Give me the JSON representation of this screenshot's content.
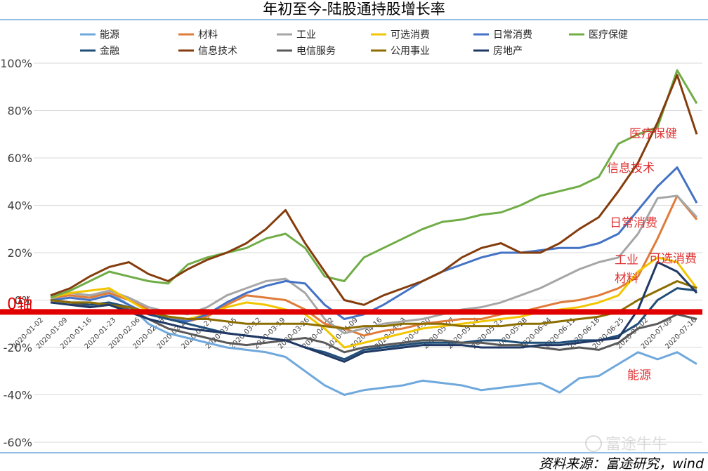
{
  "chart_data": {
    "type": "line",
    "title": "年初至今-陆股通持股增长率",
    "ylim": [
      -60,
      100
    ],
    "y_ticks": [
      "100%",
      "80%",
      "60%",
      "40%",
      "20%",
      "0%",
      "-20%",
      "-40%",
      "-60%"
    ],
    "x_tick_labels": [
      "2020-01-02",
      "2020-01-09",
      "2020-01-16",
      "2020-01-23",
      "2020-02-06",
      "2020-02-13",
      "2020-02-20",
      "2020-02-27",
      "2020-03-05",
      "2020-03-12",
      "2020-03-19",
      "2020-03-26",
      "2020-04-02",
      "2020-04-09",
      "2020-04-16",
      "2020-04-23",
      "2020-04-30",
      "2020-05-07",
      "2020-05-14",
      "2020-05-21",
      "2020-05-28",
      "2020-06-04",
      "2020-06-11",
      "2020-06-18",
      "2020-06-25",
      "2020-07-02",
      "2020-07-09",
      "2020-07-16"
    ],
    "zero_axis_label": "0轴",
    "legend_position": "top",
    "source": "资料来源：富途研究，wind",
    "watermark": "富途牛牛",
    "grid": "horizontal",
    "series": [
      {
        "name": "能源",
        "color": "#6fa8dc",
        "end_label": "能源",
        "values": [
          2,
          3,
          2,
          3,
          -2,
          -10,
          -14,
          -16,
          -18,
          -20,
          -21,
          -22,
          -24,
          -30,
          -36,
          -40,
          -38,
          -37,
          -36,
          -34,
          -35,
          -36,
          -38,
          -37,
          -36,
          -35,
          -39,
          -33,
          -32,
          -27,
          -22,
          -25,
          -22,
          -27
        ]
      },
      {
        "name": "材料",
        "color": "#e07b39",
        "end_label": "材料",
        "values": [
          1,
          2,
          1,
          3,
          0,
          -4,
          -8,
          -9,
          -7,
          -2,
          2,
          1,
          0,
          -4,
          -10,
          -12,
          -15,
          -13,
          -12,
          -10,
          -9,
          -8,
          -8,
          -6,
          -5,
          -3,
          -1,
          0,
          2,
          5,
          10,
          26,
          44,
          34
        ]
      },
      {
        "name": "工业",
        "color": "#a6a6a6",
        "end_label": "工业",
        "values": [
          2,
          3,
          2,
          4,
          1,
          -3,
          -5,
          -6,
          -3,
          2,
          5,
          8,
          9,
          3,
          -8,
          -14,
          -12,
          -10,
          -9,
          -8,
          -6,
          -4,
          -3,
          -1,
          2,
          5,
          9,
          13,
          16,
          18,
          28,
          43,
          44,
          35
        ]
      },
      {
        "name": "可选消费",
        "color": "#f2c500",
        "end_label": "可选消费",
        "values": [
          1,
          3,
          4,
          5,
          0,
          -5,
          -7,
          -8,
          -6,
          -3,
          -1,
          -2,
          -4,
          -6,
          -12,
          -20,
          -18,
          -16,
          -14,
          -12,
          -11,
          -10,
          -9,
          -8,
          -7,
          -5,
          -4,
          -3,
          -1,
          2,
          12,
          18,
          16,
          5
        ]
      },
      {
        "name": "日常消费",
        "color": "#4472c4",
        "end_label": "日常消费",
        "values": [
          0,
          1,
          0,
          2,
          -2,
          -6,
          -8,
          -9,
          -6,
          -1,
          3,
          6,
          8,
          7,
          -2,
          -8,
          -6,
          -2,
          3,
          8,
          12,
          15,
          18,
          20,
          20,
          21,
          22,
          22,
          24,
          28,
          38,
          48,
          56,
          41
        ]
      },
      {
        "name": "医疗保健",
        "color": "#70ad47",
        "end_label": "医疗保健",
        "values": [
          1,
          4,
          8,
          12,
          10,
          8,
          7,
          15,
          18,
          20,
          22,
          26,
          28,
          22,
          10,
          8,
          18,
          22,
          26,
          30,
          33,
          34,
          36,
          37,
          40,
          44,
          46,
          48,
          52,
          66,
          70,
          73,
          97,
          83
        ]
      },
      {
        "name": "金融",
        "color": "#1f4e79",
        "values": [
          0,
          -1,
          -2,
          -1,
          -3,
          -6,
          -8,
          -10,
          -12,
          -14,
          -15,
          -16,
          -17,
          -20,
          -22,
          -25,
          -21,
          -20,
          -19,
          -18,
          -18,
          -18,
          -17,
          -17,
          -18,
          -18,
          -18,
          -17,
          -17,
          -15,
          -10,
          0,
          5,
          4
        ]
      },
      {
        "name": "信息技术",
        "color": "#843c0c",
        "end_label": "信息技术",
        "values": [
          2,
          5,
          10,
          14,
          16,
          11,
          8,
          13,
          17,
          20,
          24,
          30,
          38,
          24,
          12,
          0,
          -2,
          2,
          5,
          8,
          12,
          18,
          22,
          24,
          20,
          20,
          24,
          30,
          35,
          46,
          58,
          75,
          95,
          70
        ]
      },
      {
        "name": "电信服务",
        "color": "#595959",
        "values": [
          0,
          -1,
          -3,
          -2,
          -4,
          -8,
          -12,
          -14,
          -16,
          -18,
          -19,
          -18,
          -17,
          -16,
          -18,
          -22,
          -20,
          -19,
          -18,
          -17,
          -17,
          -18,
          -18,
          -19,
          -19,
          -20,
          -21,
          -20,
          -21,
          -18,
          -12,
          -10,
          -6,
          -8
        ]
      },
      {
        "name": "公用事业",
        "color": "#8c6d00",
        "values": [
          0,
          -1,
          -1,
          -2,
          -3,
          -5,
          -7,
          -8,
          -8,
          -9,
          -10,
          -10,
          -10,
          -10,
          -11,
          -12,
          -11,
          -11,
          -10,
          -10,
          -10,
          -11,
          -11,
          -11,
          -10,
          -10,
          -9,
          -8,
          -7,
          -5,
          0,
          4,
          8,
          5
        ]
      },
      {
        "name": "房地产",
        "color": "#203864",
        "values": [
          -1,
          -2,
          -3,
          -2,
          -5,
          -8,
          -10,
          -12,
          -13,
          -14,
          -15,
          -16,
          -17,
          -20,
          -23,
          -26,
          -22,
          -21,
          -20,
          -19,
          -19,
          -19,
          -20,
          -20,
          -20,
          -19,
          -19,
          -18,
          -17,
          -16,
          -4,
          16,
          12,
          3
        ]
      }
    ]
  }
}
